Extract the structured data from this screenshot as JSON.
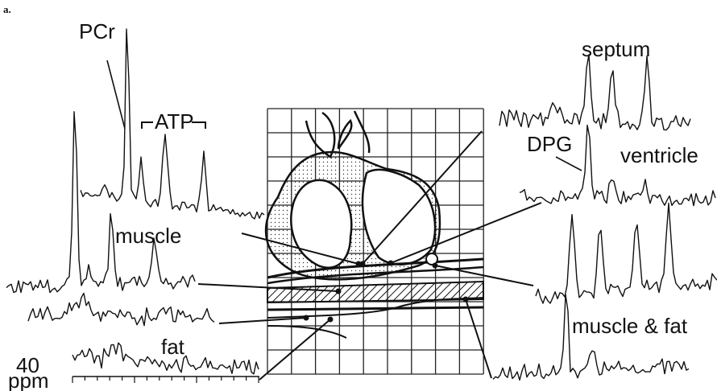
{
  "figure": {
    "panel": "a.",
    "left_labels": {
      "pcr": "PCr",
      "atp": "ATP",
      "muscle": "muscle",
      "fat": "fat"
    },
    "axis": {
      "value": "40",
      "unit": "ppm"
    },
    "right_labels": {
      "septum": "septum",
      "dpg": "DPG",
      "ventricle": "ventricle",
      "muscle_fat": "muscle & fat"
    }
  }
}
